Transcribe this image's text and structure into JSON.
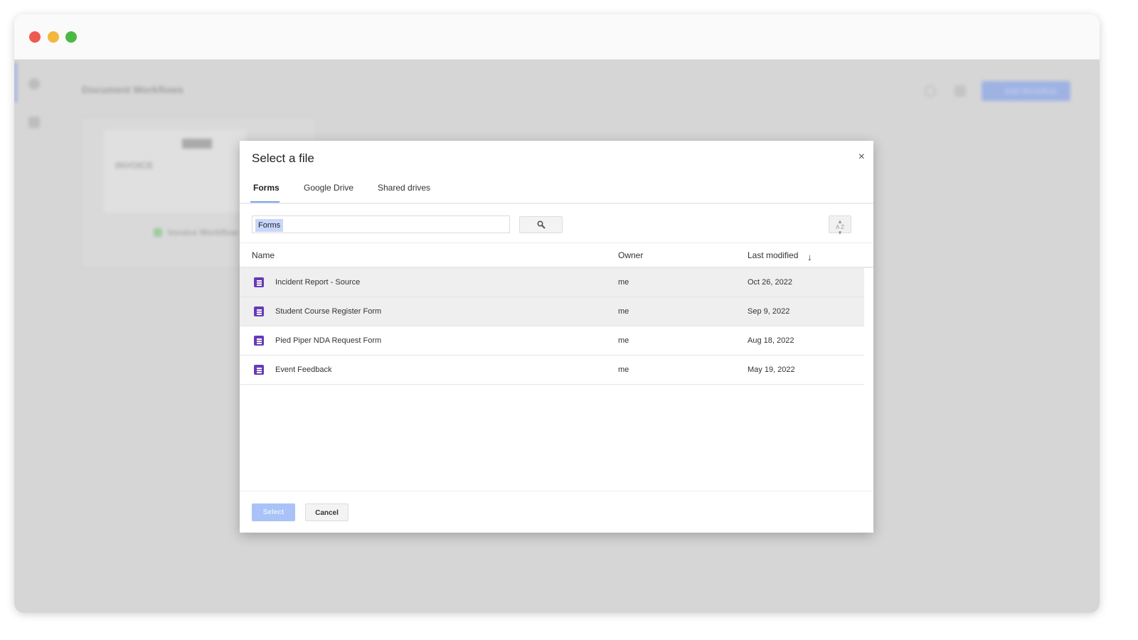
{
  "window": {
    "controls": [
      "close",
      "minimize",
      "maximize"
    ],
    "colors": {
      "close": "#ee5a52",
      "minimize": "#f4b63c",
      "maximize": "#4cb944"
    }
  },
  "background": {
    "page_title": "Document Workflows",
    "add_button": "Add Workflow",
    "card_title": "INVOICE",
    "card_workflow": "Invoice Workflow"
  },
  "dialog": {
    "title": "Select a file",
    "close_label": "×",
    "tabs": [
      {
        "label": "Forms",
        "active": true
      },
      {
        "label": "Google Drive"
      },
      {
        "label": "Shared drives"
      }
    ],
    "search": {
      "chip": "Forms",
      "search_icon": "search-icon"
    },
    "sort_icon": "sort-az-icon",
    "columns": {
      "name": "Name",
      "owner": "Owner",
      "modified": "Last modified",
      "sort_direction": "descending"
    },
    "files": [
      {
        "name": "Incident Report - Source",
        "owner": "me",
        "modified": "Oct 26, 2022",
        "selected": true
      },
      {
        "name": "Student Course Register Form",
        "owner": "me",
        "modified": "Sep 9, 2022",
        "selected": true
      },
      {
        "name": "Pied Piper NDA Request Form",
        "owner": "me",
        "modified": "Aug 18, 2022"
      },
      {
        "name": "Event Feedback",
        "owner": "me",
        "modified": "May 19, 2022"
      }
    ],
    "select_label": "Select",
    "cancel_label": "Cancel",
    "file_icon_color": "#673ab7",
    "accent": "#7ba0e8"
  }
}
